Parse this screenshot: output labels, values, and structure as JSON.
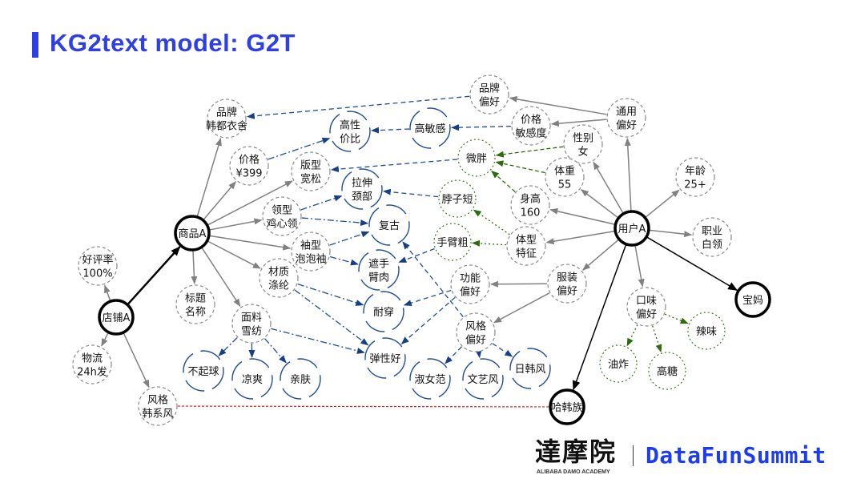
{
  "header": {
    "title": "KG2text model: G2T"
  },
  "footer": {
    "logo_cn": "達摩院",
    "logo_en": "ALIBABA DAMO ACADEMY",
    "brand": "DataFunSummit"
  },
  "colors": {
    "title": "#2f3fe6",
    "blue_edge": "#1f4e96",
    "green_edge": "#2e6b0e",
    "gray_edge": "#808080",
    "red_edge": "#e02020",
    "brand": "#1d3cf0"
  },
  "nodes": [
    {
      "id": "dianpu",
      "label": "店铺A",
      "style": "bold"
    },
    {
      "id": "shangpin",
      "label": "商品A",
      "style": "bold"
    },
    {
      "id": "yonghu",
      "label": "用户A",
      "style": "bold"
    },
    {
      "id": "baoma",
      "label": "宝妈",
      "style": "bold"
    },
    {
      "id": "hahanzu",
      "label": "哈韩族",
      "style": "bold"
    },
    {
      "id": "haopinglv",
      "label": "好评率\n100%",
      "style": "gray"
    },
    {
      "id": "wuliu",
      "label": "物流\n24h发",
      "style": "gray"
    },
    {
      "id": "fengge_hanxi",
      "label": "风格\n韩系风",
      "style": "gray"
    },
    {
      "id": "pinpai",
      "label": "品牌\n韩都衣舍",
      "style": "gray"
    },
    {
      "id": "jiage",
      "label": "价格\n¥399",
      "style": "gray"
    },
    {
      "id": "banxing",
      "label": "版型\n宽松",
      "style": "gray"
    },
    {
      "id": "lingxing",
      "label": "领型\n鸡心领",
      "style": "gray"
    },
    {
      "id": "xiuxing",
      "label": "袖型\n泡泡袖",
      "style": "gray"
    },
    {
      "id": "caizhi",
      "label": "材质\n涤纶",
      "style": "gray"
    },
    {
      "id": "mianliao",
      "label": "面料\n雪纺",
      "style": "gray"
    },
    {
      "id": "biaoti",
      "label": "标题\n名称",
      "style": "gray"
    },
    {
      "id": "gaoxingjiabi",
      "label": "高性\n价比",
      "style": "blue"
    },
    {
      "id": "lashen",
      "label": "拉伸\n颈部",
      "style": "blue"
    },
    {
      "id": "fugu",
      "label": "复古",
      "style": "blue"
    },
    {
      "id": "zheshou",
      "label": "遮手\n臂肉",
      "style": "blue"
    },
    {
      "id": "naichuan",
      "label": "耐穿",
      "style": "blue"
    },
    {
      "id": "tanxinghao",
      "label": "弹性好",
      "style": "blue"
    },
    {
      "id": "buqiqiu",
      "label": "不起球",
      "style": "blue"
    },
    {
      "id": "liangshuang",
      "label": "凉爽",
      "style": "blue"
    },
    {
      "id": "qinfu",
      "label": "亲肤",
      "style": "blue"
    },
    {
      "id": "gaominggan",
      "label": "高敏感",
      "style": "blue"
    },
    {
      "id": "pinpaipianhao",
      "label": "品牌\n偏好",
      "style": "gray"
    },
    {
      "id": "jiagemingan",
      "label": "价格\n敏感度",
      "style": "gray"
    },
    {
      "id": "weipang",
      "label": "微胖",
      "style": "green"
    },
    {
      "id": "bozi",
      "label": "脖子短",
      "style": "green"
    },
    {
      "id": "shoubi",
      "label": "手臂粗",
      "style": "green"
    },
    {
      "id": "gongneng",
      "label": "功能\n偏好",
      "style": "gray"
    },
    {
      "id": "fenggepianhao",
      "label": "风格\n偏好",
      "style": "gray"
    },
    {
      "id": "shunvfan",
      "label": "淑女范",
      "style": "blue"
    },
    {
      "id": "wenyi",
      "label": "文艺风",
      "style": "blue"
    },
    {
      "id": "rihan",
      "label": "日韩风",
      "style": "blue"
    },
    {
      "id": "tongyong",
      "label": "通用\n偏好",
      "style": "gray"
    },
    {
      "id": "xingbie",
      "label": "性别\n女",
      "style": "gray"
    },
    {
      "id": "tizhong",
      "label": "体重\n55",
      "style": "gray"
    },
    {
      "id": "shengao",
      "label": "身高\n160",
      "style": "gray"
    },
    {
      "id": "tixing",
      "label": "体型\n特征",
      "style": "gray"
    },
    {
      "id": "nianling",
      "label": "年龄\n25+",
      "style": "gray"
    },
    {
      "id": "zhiye",
      "label": "职业\n白领",
      "style": "gray"
    },
    {
      "id": "fuzhuang",
      "label": "服装\n偏好",
      "style": "gray"
    },
    {
      "id": "kouwei",
      "label": "口味\n偏好",
      "style": "gray"
    },
    {
      "id": "lawei",
      "label": "辣味",
      "style": "green"
    },
    {
      "id": "youzha",
      "label": "油炸",
      "style": "green"
    },
    {
      "id": "gaotang",
      "label": "高糖",
      "style": "green"
    }
  ],
  "edges": [
    {
      "from": "dianpu",
      "to": "shangpin",
      "style": "bold"
    },
    {
      "from": "yonghu",
      "to": "baoma",
      "style": "black"
    },
    {
      "from": "yonghu",
      "to": "hahanzu",
      "style": "black"
    },
    {
      "from": "dianpu",
      "to": "haopinglv",
      "style": "gray"
    },
    {
      "from": "dianpu",
      "to": "wuliu",
      "style": "gray"
    },
    {
      "from": "dianpu",
      "to": "fengge_hanxi",
      "style": "gray"
    },
    {
      "from": "shangpin",
      "to": "pinpai",
      "style": "gray"
    },
    {
      "from": "shangpin",
      "to": "jiage",
      "style": "gray"
    },
    {
      "from": "shangpin",
      "to": "banxing",
      "style": "gray"
    },
    {
      "from": "shangpin",
      "to": "lingxing",
      "style": "gray"
    },
    {
      "from": "shangpin",
      "to": "xiuxing",
      "style": "gray"
    },
    {
      "from": "shangpin",
      "to": "caizhi",
      "style": "gray"
    },
    {
      "from": "shangpin",
      "to": "mianliao",
      "style": "gray"
    },
    {
      "from": "shangpin",
      "to": "biaoti",
      "style": "gray"
    },
    {
      "from": "yonghu",
      "to": "tongyong",
      "style": "gray"
    },
    {
      "from": "yonghu",
      "to": "xingbie",
      "style": "gray"
    },
    {
      "from": "yonghu",
      "to": "tizhong",
      "style": "gray"
    },
    {
      "from": "yonghu",
      "to": "shengao",
      "style": "gray"
    },
    {
      "from": "yonghu",
      "to": "tixing",
      "style": "gray"
    },
    {
      "from": "yonghu",
      "to": "nianling",
      "style": "gray"
    },
    {
      "from": "yonghu",
      "to": "zhiye",
      "style": "gray"
    },
    {
      "from": "yonghu",
      "to": "fuzhuang",
      "style": "gray"
    },
    {
      "from": "yonghu",
      "to": "kouwei",
      "style": "gray"
    },
    {
      "from": "tongyong",
      "to": "pinpaipianhao",
      "style": "gray"
    },
    {
      "from": "tongyong",
      "to": "jiagemingan",
      "style": "gray"
    },
    {
      "from": "fuzhuang",
      "to": "gongneng",
      "style": "gray"
    },
    {
      "from": "fuzhuang",
      "to": "fenggepianhao",
      "style": "gray"
    },
    {
      "from": "pinpaipianhao",
      "to": "pinpai",
      "style": "blue-dash"
    },
    {
      "from": "jiagemingan",
      "to": "gaominggan",
      "style": "blue-dash"
    },
    {
      "from": "gaominggan",
      "to": "gaoxingjiabi",
      "style": "blue-dash"
    },
    {
      "from": "weipang",
      "to": "banxing",
      "style": "blue-dash"
    },
    {
      "from": "bozi",
      "to": "lashen",
      "style": "blue-dash"
    },
    {
      "from": "shoubi",
      "to": "zheshou",
      "style": "blue-dash"
    },
    {
      "from": "gongneng",
      "to": "naichuan",
      "style": "blue-dash"
    },
    {
      "from": "gongneng",
      "to": "tanxinghao",
      "style": "blue-dash"
    },
    {
      "from": "fenggepianhao",
      "to": "fugu",
      "style": "blue-dash"
    },
    {
      "from": "fenggepianhao",
      "to": "shunvfan",
      "style": "blue-dash"
    },
    {
      "from": "fenggepianhao",
      "to": "wenyi",
      "style": "blue-dash"
    },
    {
      "from": "fenggepianhao",
      "to": "rihan",
      "style": "blue-dash"
    },
    {
      "from": "jiage",
      "to": "gaoxingjiabi",
      "style": "blue-dashdot"
    },
    {
      "from": "lingxing",
      "to": "lashen",
      "style": "blue-dashdot"
    },
    {
      "from": "lingxing",
      "to": "fugu",
      "style": "blue-dashdot"
    },
    {
      "from": "xiuxing",
      "to": "fugu",
      "style": "blue-dashdot"
    },
    {
      "from": "xiuxing",
      "to": "zheshou",
      "style": "blue-dashdot"
    },
    {
      "from": "caizhi",
      "to": "naichuan",
      "style": "blue-dashdot"
    },
    {
      "from": "caizhi",
      "to": "tanxinghao",
      "style": "blue-dashdot"
    },
    {
      "from": "mianliao",
      "to": "tanxinghao",
      "style": "blue-dashdot"
    },
    {
      "from": "mianliao",
      "to": "buqiqiu",
      "style": "blue-dashdot"
    },
    {
      "from": "mianliao",
      "to": "liangshuang",
      "style": "blue-dashdot"
    },
    {
      "from": "mianliao",
      "to": "qinfu",
      "style": "blue-dashdot"
    },
    {
      "from": "xingbie",
      "to": "weipang",
      "style": "green-dash"
    },
    {
      "from": "tizhong",
      "to": "weipang",
      "style": "green-dash"
    },
    {
      "from": "shengao",
      "to": "weipang",
      "style": "green-dash"
    },
    {
      "from": "tixing",
      "to": "bozi",
      "style": "green-dot"
    },
    {
      "from": "tixing",
      "to": "shoubi",
      "style": "green-dot"
    },
    {
      "from": "kouwei",
      "to": "lawei",
      "style": "green-dot"
    },
    {
      "from": "kouwei",
      "to": "youzha",
      "style": "green-dot"
    },
    {
      "from": "kouwei",
      "to": "gaotang",
      "style": "green-dot"
    },
    {
      "from": "fengge_hanxi",
      "to": "hahanzu",
      "style": "red"
    }
  ]
}
